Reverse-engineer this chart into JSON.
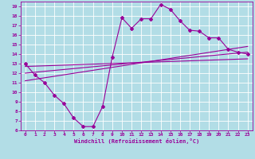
{
  "xlabel": "Windchill (Refroidissement éolien,°C)",
  "bg_color": "#b2dde6",
  "line_color": "#990099",
  "grid_color": "#ffffff",
  "xlim": [
    -0.5,
    23.5
  ],
  "ylim": [
    6,
    19.5
  ],
  "xticks": [
    0,
    1,
    2,
    3,
    4,
    5,
    6,
    7,
    8,
    9,
    10,
    11,
    12,
    13,
    14,
    15,
    16,
    17,
    18,
    19,
    20,
    21,
    22,
    23
  ],
  "yticks": [
    6,
    7,
    8,
    9,
    10,
    11,
    12,
    13,
    14,
    15,
    16,
    17,
    18,
    19
  ],
  "curve1_x": [
    0,
    1,
    2,
    3,
    4,
    5,
    6,
    7,
    8,
    9,
    10,
    11,
    12,
    13,
    14,
    15,
    16,
    17,
    18,
    19,
    20,
    21,
    22,
    23
  ],
  "curve1_y": [
    13.0,
    11.8,
    11.0,
    9.7,
    8.8,
    7.3,
    6.4,
    6.4,
    8.5,
    13.7,
    17.8,
    16.7,
    17.7,
    17.7,
    19.2,
    18.7,
    17.5,
    16.5,
    16.4,
    15.7,
    15.7,
    14.5,
    14.2,
    14.0
  ],
  "line1_x": [
    0,
    23
  ],
  "line1_y": [
    11.2,
    14.8
  ],
  "line2_x": [
    0,
    23
  ],
  "line2_y": [
    12.0,
    14.2
  ],
  "line3_x": [
    0,
    23
  ],
  "line3_y": [
    12.7,
    13.5
  ]
}
